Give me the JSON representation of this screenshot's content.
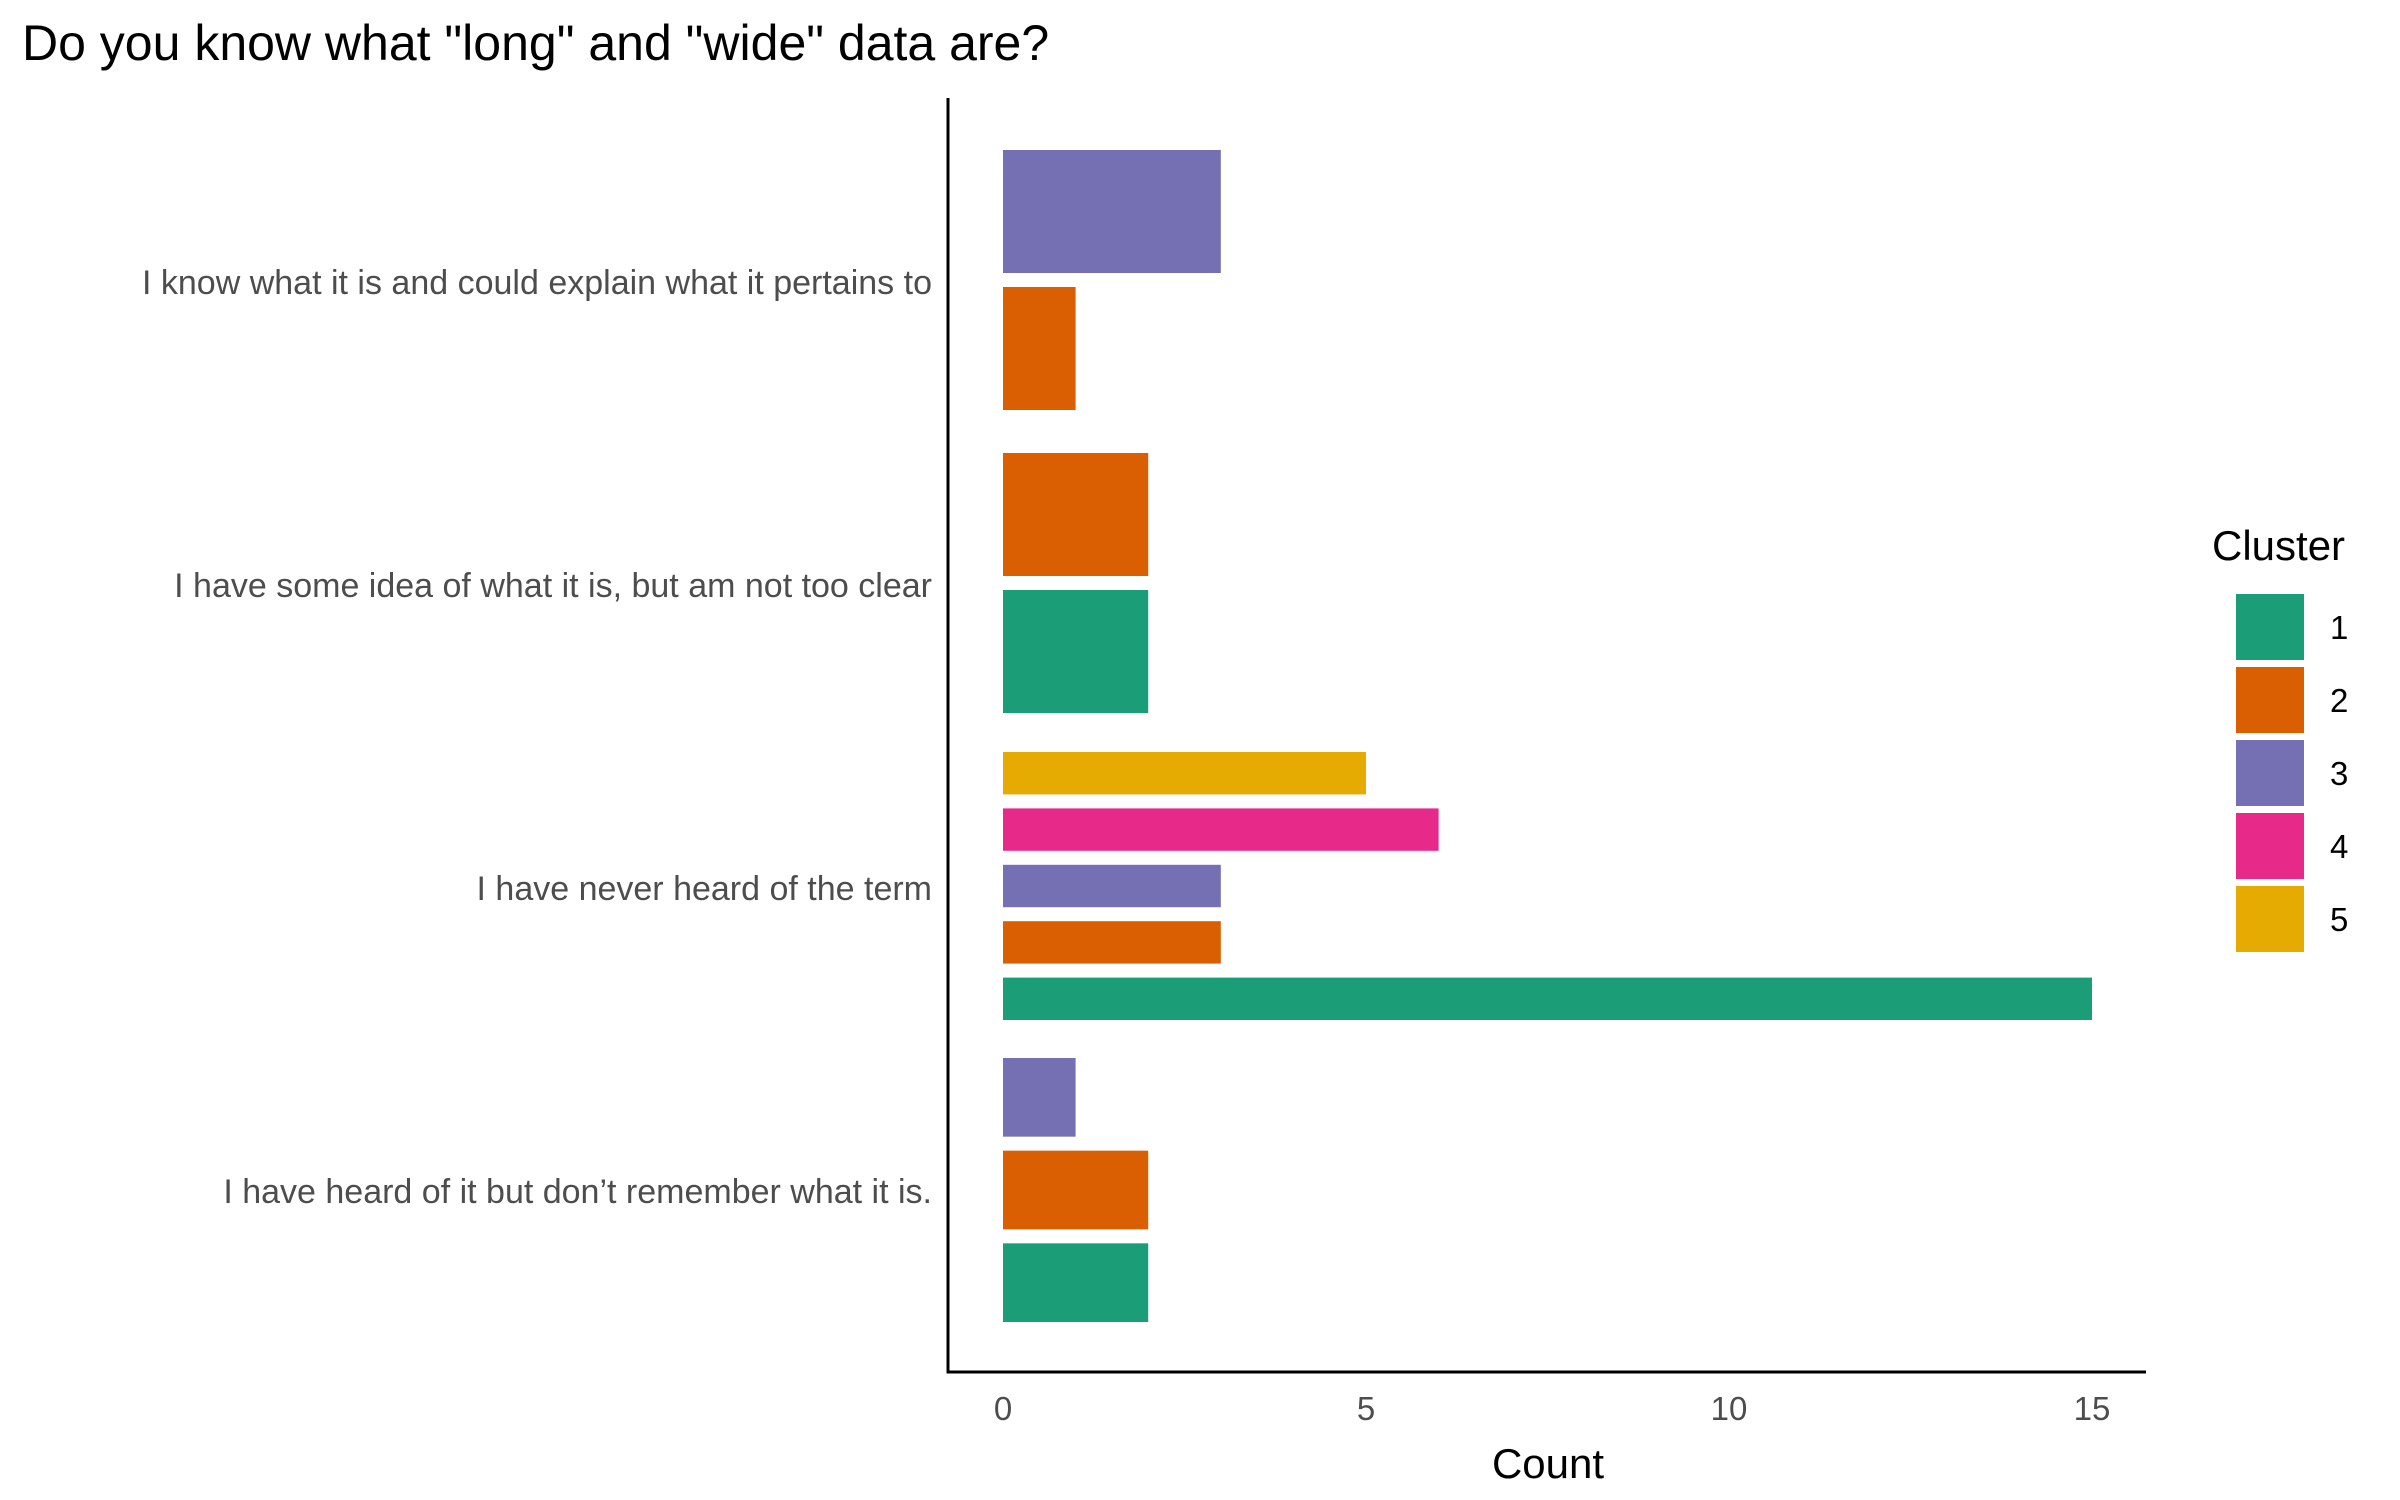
{
  "chart_data": {
    "type": "bar",
    "orientation": "horizontal",
    "title": "Do you know what \"long\" and \"wide\" data are?",
    "xlabel": "Count",
    "ylabel": "",
    "xlim": [
      0,
      15
    ],
    "xticks": [
      0,
      5,
      10,
      15
    ],
    "grid": false,
    "legend": {
      "title": "Cluster",
      "position": "right"
    },
    "series_colors": {
      "1": "#1b9e77",
      "2": "#d95f02",
      "3": "#7570b3",
      "4": "#e7298a",
      "5": "#e6ab02"
    },
    "categories": [
      {
        "label": "I know what it is and could explain what it pertains to",
        "bars": [
          {
            "cluster": "3",
            "value": 3
          },
          {
            "cluster": "2",
            "value": 1
          }
        ]
      },
      {
        "label": "I have some idea of what it is, but am not too clear",
        "bars": [
          {
            "cluster": "2",
            "value": 2
          },
          {
            "cluster": "1",
            "value": 2
          }
        ]
      },
      {
        "label": "I have never heard of the term",
        "bars": [
          {
            "cluster": "5",
            "value": 5
          },
          {
            "cluster": "4",
            "value": 6
          },
          {
            "cluster": "3",
            "value": 3
          },
          {
            "cluster": "2",
            "value": 3
          },
          {
            "cluster": "1",
            "value": 15
          }
        ]
      },
      {
        "label": "I have heard of it but don’t remember what it is.",
        "bars": [
          {
            "cluster": "3",
            "value": 1
          },
          {
            "cluster": "2",
            "value": 2
          },
          {
            "cluster": "1",
            "value": 2
          }
        ]
      }
    ],
    "legend_items": [
      "1",
      "2",
      "3",
      "4",
      "5"
    ]
  }
}
